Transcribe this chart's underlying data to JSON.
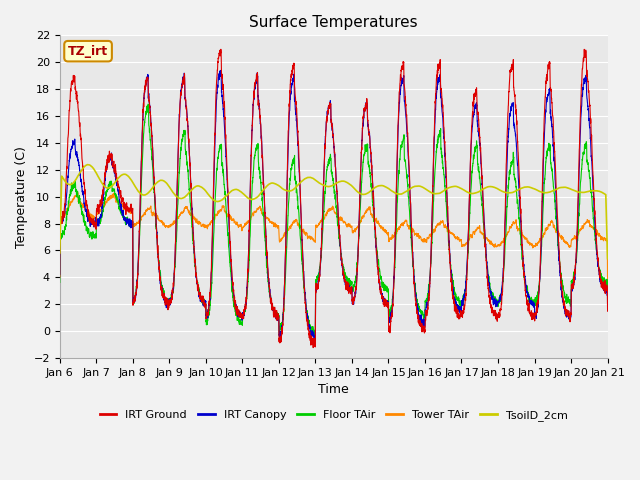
{
  "title": "Surface Temperatures",
  "xlabel": "Time",
  "ylabel": "Temperature (C)",
  "ylim": [
    -2,
    22
  ],
  "yticks": [
    -2,
    0,
    2,
    4,
    6,
    8,
    10,
    12,
    14,
    16,
    18,
    20,
    22
  ],
  "xtick_labels": [
    "Jan 6",
    "Jan 7",
    "Jan 8",
    "Jan 9",
    "Jan 10",
    "Jan 11",
    "Jan 12",
    "Jan 13",
    "Jan 14",
    "Jan 15",
    "Jan 16",
    "Jan 17",
    "Jan 18",
    "Jan 19",
    "Jan 20",
    "Jan 21"
  ],
  "legend_entries": [
    "IRT Ground",
    "IRT Canopy",
    "Floor TAir",
    "Tower TAir",
    "TsoilD_2cm"
  ],
  "legend_colors": [
    "#dd0000",
    "#0000cc",
    "#00cc00",
    "#ff8800",
    "#cccc00"
  ],
  "annotation_text": "TZ_irt",
  "annotation_bg": "#ffffcc",
  "annotation_border": "#cc8800",
  "line_colors": {
    "irt_ground": "#dd0000",
    "irt_canopy": "#0000cc",
    "floor_tair": "#00cc00",
    "tower_tair": "#ff8800",
    "tsoild_2cm": "#cccc00"
  },
  "background_color": "#e8e8e8",
  "grid_color": "#ffffff",
  "title_fontsize": 11,
  "axis_fontsize": 9,
  "tick_fontsize": 8
}
